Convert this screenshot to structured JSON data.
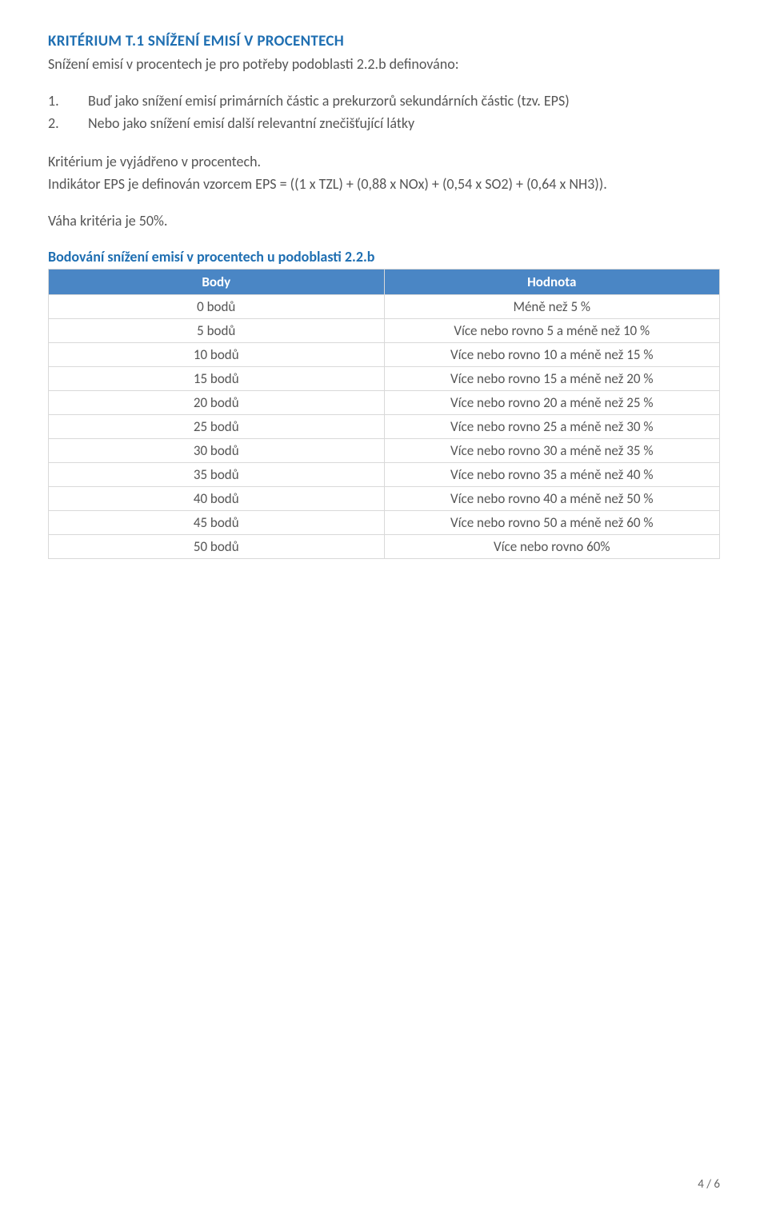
{
  "criterion": {
    "title": "KRITÉRIUM T.1  SNÍŽENÍ EMISÍ V PROCENTECH",
    "definition": "Snížení emisí v procentech je pro potřeby podoblasti 2.2.b definováno:",
    "items": [
      "Buď jako snížení emisí primárních částic a prekurzorů sekundárních částic (tzv. EPS)",
      "Nebo jako snížení emisí další relevantní znečišťující látky"
    ],
    "expressed": "Kritérium je vyjádřeno v procentech.",
    "indicator": "Indikátor EPS je definován vzorcem EPS = ((1 x TZL) + (0,88 x NOx) + (0,54 x SO2) + (0,64 x NH3)).",
    "weight": "Váha kritéria je 50%."
  },
  "scoring": {
    "caption": "Bodování snížení emisí v procentech u podoblasti 2.2.b",
    "headers": {
      "points": "Body",
      "value": "Hodnota"
    },
    "rows": [
      {
        "points": "0 bodů",
        "value": "Méně než 5 %"
      },
      {
        "points": "5 bodů",
        "value": "Více nebo rovno 5 a méně než 10 %"
      },
      {
        "points": "10 bodů",
        "value": "Více nebo rovno 10 a méně než 15 %"
      },
      {
        "points": "15 bodů",
        "value": "Více nebo rovno 15 a méně než 20 %"
      },
      {
        "points": "20 bodů",
        "value": "Více nebo rovno 20 a méně než 25 %"
      },
      {
        "points": "25 bodů",
        "value": "Více nebo rovno 25 a méně než 30 %"
      },
      {
        "points": "30 bodů",
        "value": "Více nebo rovno 30 a méně než 35 %"
      },
      {
        "points": "35 bodů",
        "value": "Více nebo rovno 35 a méně než 40 %"
      },
      {
        "points": "40 bodů",
        "value": "Více nebo rovno 40 a méně než 50 %"
      },
      {
        "points": "45 bodů",
        "value": "Více nebo rovno 50 a méně než 60 %"
      },
      {
        "points": "50 bodů",
        "value": "Více nebo rovno 60%"
      }
    ]
  },
  "footer": {
    "page": "4 / 6"
  },
  "colors": {
    "heading_blue": "#1f6fb2",
    "table_header_bg": "#4a86c5",
    "table_header_text": "#ffffff",
    "border": "#d9d9d9",
    "body_text": "#555555"
  }
}
